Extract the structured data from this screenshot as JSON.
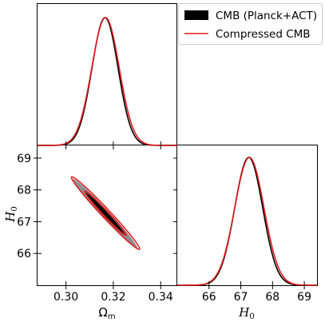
{
  "chart_data": {
    "type": "triangle-corner-plot",
    "legend": {
      "placement": "top-right",
      "entries": [
        {
          "label": "CMB (Planck+ACT)",
          "style": "filled",
          "color": "#000000"
        },
        {
          "label": "Compressed CMB",
          "style": "line",
          "color": "#e31a1c"
        }
      ]
    },
    "parameters": [
      {
        "name": "omega_m",
        "label_main": "Ω",
        "label_sub": "m",
        "range": [
          0.288,
          0.347
        ],
        "ticks": [
          0.3,
          0.32,
          0.34
        ],
        "tick_labels": [
          "0.30",
          "0.32",
          "0.34"
        ]
      },
      {
        "name": "H0",
        "label_main": "H",
        "label_sub": "0",
        "range": [
          65.0,
          69.4
        ],
        "ticks": [
          66,
          67,
          68,
          69
        ],
        "tick_labels": [
          "66",
          "67",
          "68",
          "69"
        ]
      }
    ],
    "series": [
      {
        "name": "CMB (Planck+ACT)",
        "color": "#000000",
        "omega_m": {
          "mean": 0.3165,
          "sigma": 0.0055
        },
        "H0": {
          "mean": 67.25,
          "sigma": 0.44
        },
        "correlation": -0.985
      },
      {
        "name": "Compressed CMB",
        "color": "#e31a1c",
        "omega_m": {
          "mean": 0.3167,
          "sigma": 0.0058
        },
        "H0": {
          "mean": 67.27,
          "sigma": 0.46
        },
        "correlation": -0.985
      }
    ]
  }
}
